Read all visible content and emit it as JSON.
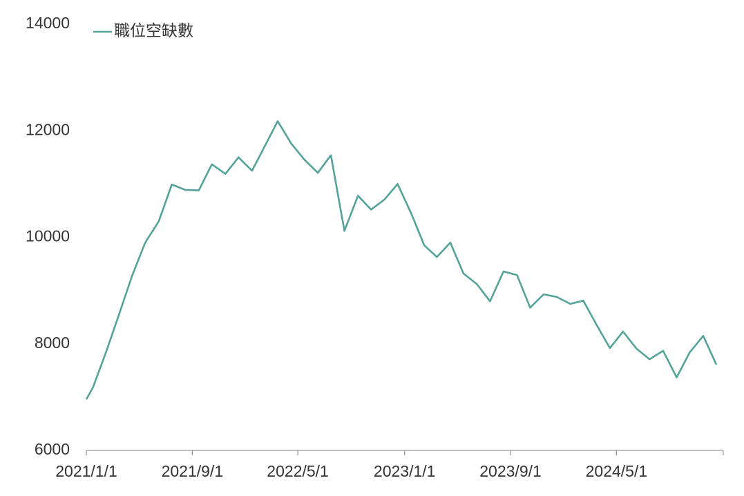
{
  "chart_data": {
    "type": "line",
    "x": [
      "2021/1/1",
      "2021/1/16",
      "2021/2/15",
      "2021/3/16",
      "2021/4/16",
      "2021/5/16",
      "2021/6/16",
      "2021/7/16",
      "2021/8/16",
      "2021/9/16",
      "2021/10/16",
      "2021/11/16",
      "2021/12/16",
      "2022/1/16",
      "2022/2/15",
      "2022/3/16",
      "2022/4/16",
      "2022/5/16",
      "2022/6/16",
      "2022/7/16",
      "2022/8/16",
      "2022/9/16",
      "2022/10/16",
      "2022/11/16",
      "2022/12/16",
      "2023/1/16",
      "2023/2/15",
      "2023/3/16",
      "2023/4/16",
      "2023/5/16",
      "2023/6/16",
      "2023/7/16",
      "2023/8/16",
      "2023/9/16",
      "2023/10/16",
      "2023/11/16",
      "2023/12/16",
      "2024/1/16",
      "2024/2/15",
      "2024/3/16",
      "2024/4/16",
      "2024/5/16",
      "2024/6/16",
      "2024/7/16",
      "2024/8/16",
      "2024/9/16",
      "2024/10/16",
      "2024/11/16",
      "2024/12/16"
    ],
    "series": [
      {
        "name": "職位空缺數",
        "color": "#54a39a",
        "values": [
          6960,
          7180,
          7840,
          8530,
          9280,
          9900,
          10300,
          10990,
          10890,
          10880,
          11370,
          11190,
          11500,
          11250,
          11720,
          12180,
          11760,
          11460,
          11210,
          11540,
          10120,
          10780,
          10520,
          10710,
          11000,
          10450,
          9850,
          9630,
          9900,
          9320,
          9120,
          8800,
          9360,
          9290,
          8680,
          8930,
          8880,
          8750,
          8810,
          8360,
          7920,
          8230,
          7910,
          7710,
          7870,
          7370,
          7840,
          8150,
          7610
        ]
      }
    ],
    "xlim": [
      "2021/1/1",
      "2025/1/1"
    ],
    "xticks": [
      "2021/1/1",
      "2021/9/1",
      "2022/5/1",
      "2023/1/1",
      "2023/9/1",
      "2024/5/1"
    ],
    "ylim": [
      6000,
      14000
    ],
    "yticks": [
      6000,
      8000,
      10000,
      12000,
      14000
    ],
    "legend": "top-left"
  }
}
